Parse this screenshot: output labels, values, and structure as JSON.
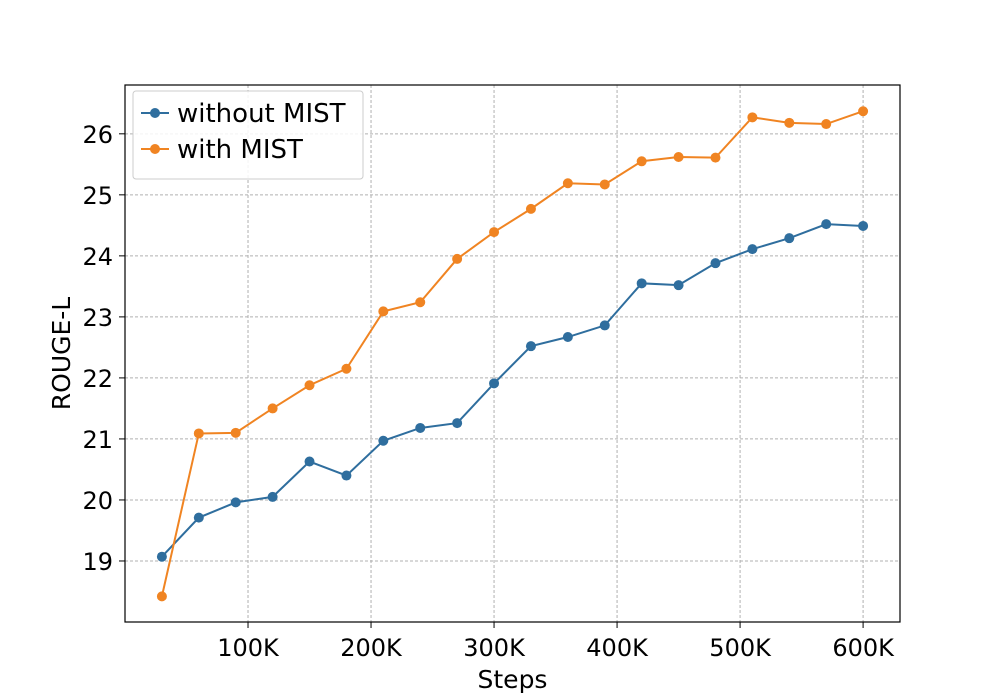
{
  "chart_data": {
    "type": "line",
    "title": "",
    "xlabel": "Steps",
    "ylabel": "ROUGE-L",
    "xlim": [
      0,
      630000
    ],
    "ylim": [
      18.0,
      26.8
    ],
    "grid": true,
    "legend_position": "top-left",
    "x_ticks": [
      100000,
      200000,
      300000,
      400000,
      500000,
      600000
    ],
    "x_tick_labels": [
      "100K",
      "200K",
      "300K",
      "400K",
      "500K",
      "600K"
    ],
    "y_ticks": [
      19,
      20,
      21,
      22,
      23,
      24,
      25,
      26
    ],
    "y_tick_labels": [
      "19",
      "20",
      "21",
      "22",
      "23",
      "24",
      "25",
      "26"
    ],
    "x": [
      30000,
      60000,
      90000,
      120000,
      150000,
      180000,
      210000,
      240000,
      270000,
      300000,
      330000,
      360000,
      390000,
      420000,
      450000,
      480000,
      510000,
      540000,
      570000,
      600000
    ],
    "series": [
      {
        "name": "without MIST",
        "color": "#2f6e9e",
        "values": [
          19.07,
          19.71,
          19.96,
          20.05,
          20.63,
          20.4,
          20.97,
          21.18,
          21.26,
          21.91,
          22.52,
          22.67,
          22.86,
          23.55,
          23.52,
          23.88,
          24.11,
          24.29,
          24.52,
          24.49
        ]
      },
      {
        "name": "with MIST",
        "color": "#f08422",
        "values": [
          18.42,
          21.09,
          21.1,
          21.5,
          21.88,
          22.15,
          23.09,
          23.24,
          23.95,
          24.39,
          24.77,
          25.19,
          25.17,
          25.55,
          25.62,
          25.61,
          26.27,
          26.18,
          26.16,
          26.37
        ]
      }
    ]
  }
}
